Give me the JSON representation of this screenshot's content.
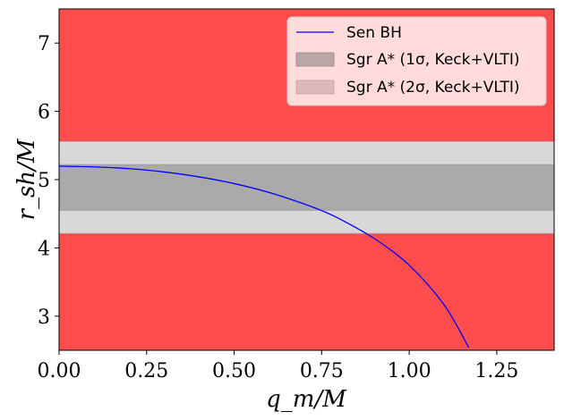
{
  "chart_data": {
    "type": "line",
    "title": "",
    "xlabel": "q_m/M",
    "ylabel": "r_sh/M",
    "xlim": [
      0,
      1.414
    ],
    "ylim": [
      2.5,
      7.5
    ],
    "x_ticks": [
      0.0,
      0.25,
      0.5,
      0.75,
      1.0,
      1.25
    ],
    "x_tick_labels": [
      "0.00",
      "0.25",
      "0.50",
      "0.75",
      "1.00",
      "1.25"
    ],
    "y_ticks": [
      3,
      4,
      5,
      6,
      7
    ],
    "y_tick_labels": [
      "3",
      "4",
      "5",
      "6",
      "7"
    ],
    "excluded_region_color": "#ff4c4c",
    "bands": [
      {
        "name": "Sgr A* (2σ, Keck+VLTI)",
        "y_range": [
          4.21,
          5.56
        ],
        "color": "#d8d8d8"
      },
      {
        "name": "Sgr A* (1σ, Keck+VLTI)",
        "y_range": [
          4.55,
          5.22
        ],
        "color": "#aaaaaa"
      }
    ],
    "series": [
      {
        "name": "Sen BH",
        "color": "#0000ff",
        "x": [
          0.0,
          0.1,
          0.2,
          0.3,
          0.4,
          0.5,
          0.6,
          0.7,
          0.75,
          0.8,
          0.9,
          1.0,
          1.1,
          1.17
        ],
        "y": [
          5.196,
          5.187,
          5.16,
          5.112,
          5.04,
          4.942,
          4.812,
          4.644,
          4.546,
          4.428,
          4.138,
          3.746,
          3.164,
          2.54
        ]
      }
    ],
    "legend": {
      "position": "top-right",
      "entries": [
        {
          "label": "Sen BH",
          "kind": "line",
          "color": "#0000ff"
        },
        {
          "label": "Sgr A* (1σ, Keck+VLTI)",
          "kind": "patch",
          "color": "#b9a6a6"
        },
        {
          "label": "Sgr A* (2σ, Keck+VLTI)",
          "kind": "patch",
          "color": "#dcb9b9"
        }
      ]
    }
  }
}
